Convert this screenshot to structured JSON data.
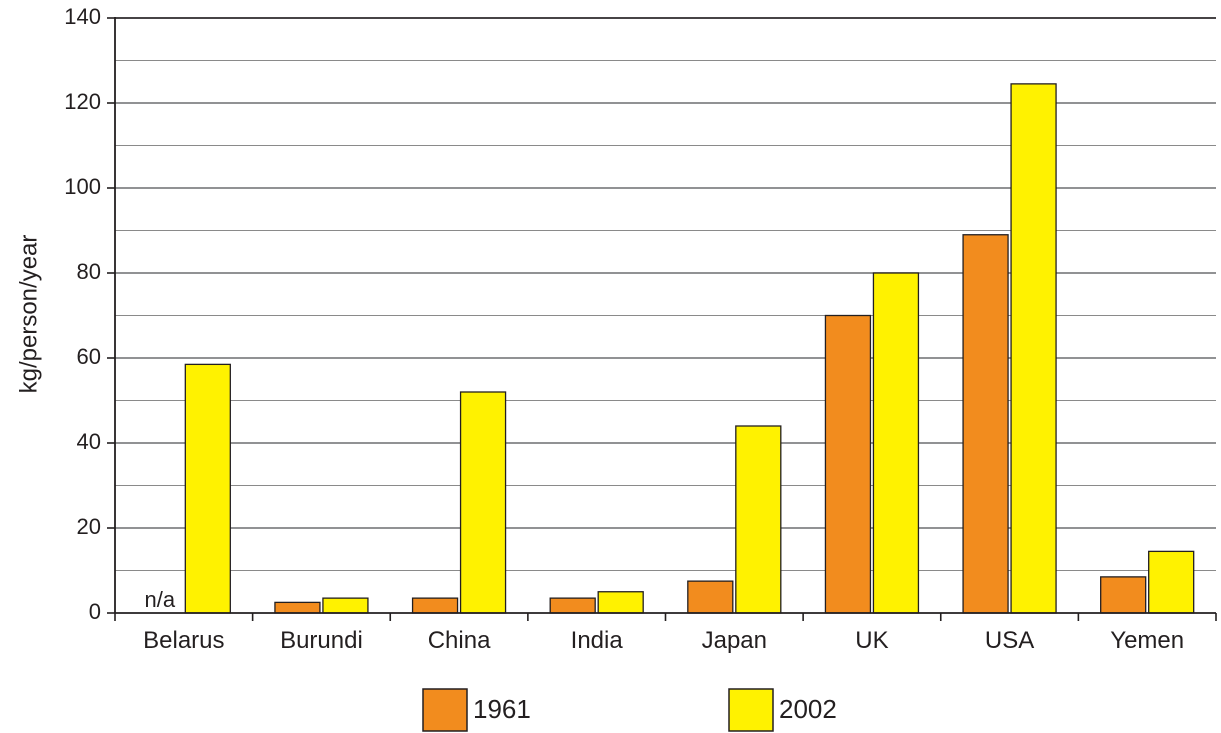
{
  "chart_data": {
    "type": "bar",
    "ylabel": "kg/person/year",
    "xlabel": "",
    "ylim": [
      0,
      140
    ],
    "yticks": [
      0,
      20,
      40,
      60,
      80,
      100,
      120,
      140
    ],
    "minor_gridlines": [
      10,
      30,
      50,
      70,
      90,
      110,
      130
    ],
    "grid": true,
    "legend_placement": "bottom",
    "categories": [
      "Belarus",
      "Burundi",
      "China",
      "India",
      "Japan",
      "UK",
      "USA",
      "Yemen"
    ],
    "series": [
      {
        "name": "1961",
        "color": "#f28c1e",
        "values": [
          null,
          2.5,
          3.5,
          3.5,
          7.5,
          70,
          89,
          8.5
        ]
      },
      {
        "name": "2002",
        "color": "#fff200",
        "values": [
          58.5,
          3.5,
          52,
          5,
          44,
          80,
          124.5,
          14.5
        ]
      }
    ],
    "annotations": [
      {
        "category": "Belarus",
        "series": "1961",
        "text": "n/a"
      }
    ]
  }
}
